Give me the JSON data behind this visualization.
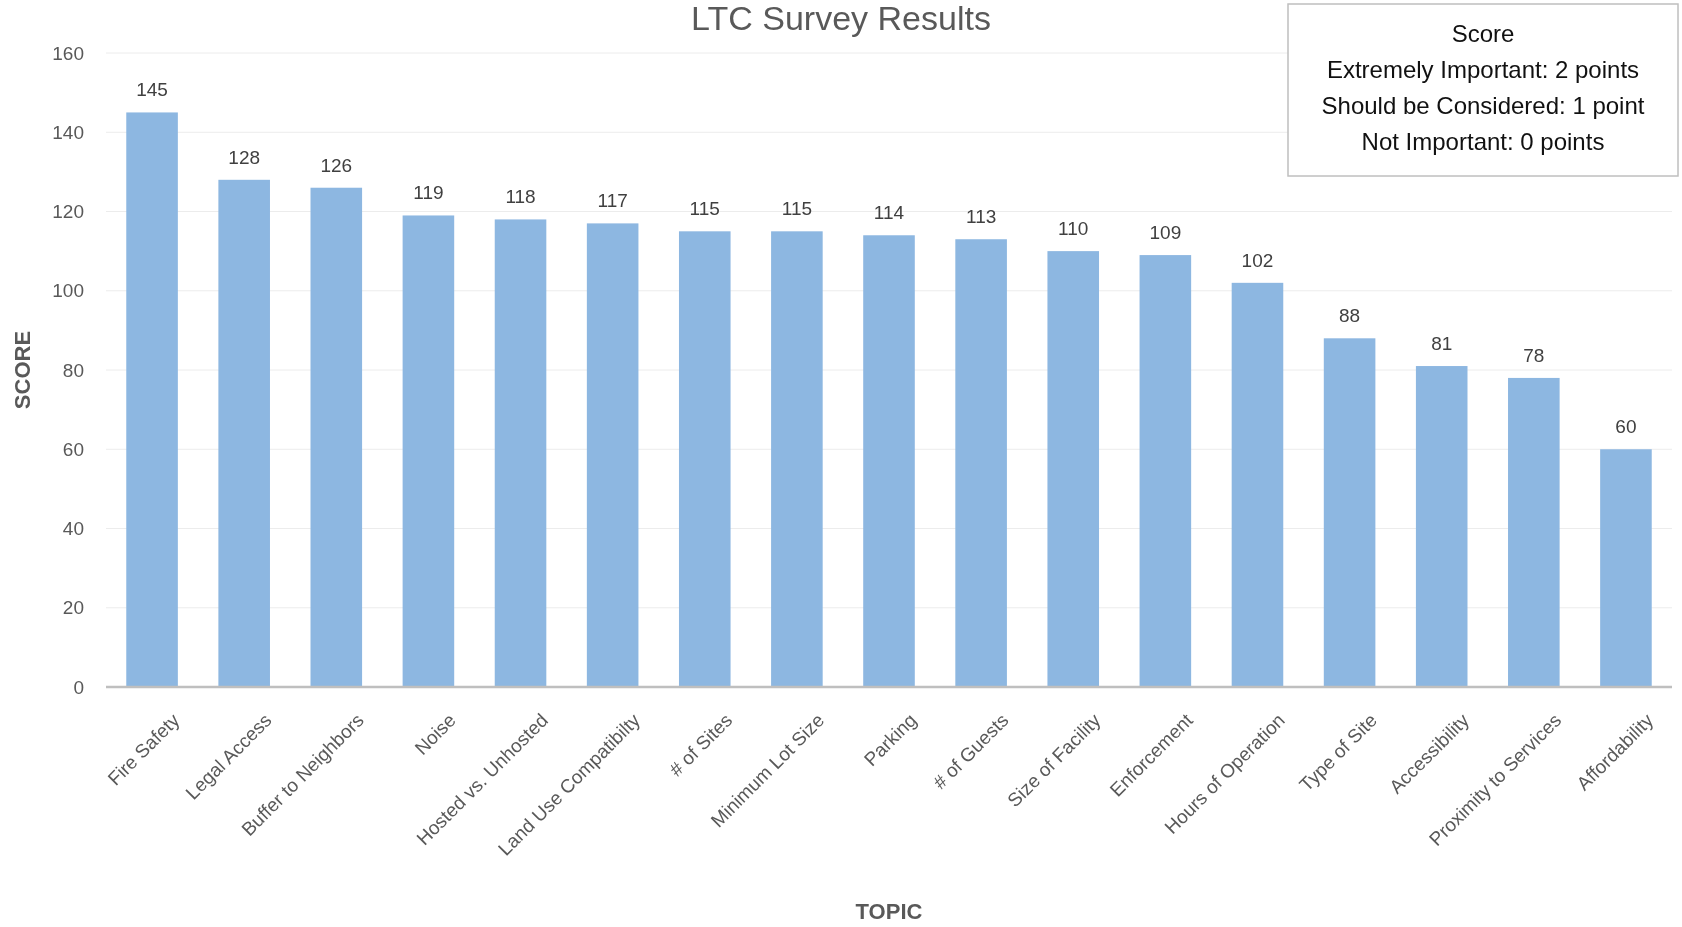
{
  "chart_data": {
    "type": "bar",
    "title": "LTC Survey Results",
    "xlabel": "TOPIC",
    "ylabel": "SCORE",
    "categories": [
      "Fire Safety",
      "Legal Access",
      "Buffer to Neighbors",
      "Noise",
      "Hosted vs. Unhosted",
      "Land Use Compatibilty",
      "# of Sites",
      "Minimum Lot Size",
      "Parking",
      "# of Guests",
      "Size of Facility",
      "Enforcement",
      "Hours of Operation",
      "Type of Site",
      "Accessibility",
      "Proximity to Services",
      "Affordability"
    ],
    "values": [
      145,
      128,
      126,
      119,
      118,
      117,
      115,
      115,
      114,
      113,
      110,
      109,
      102,
      88,
      81,
      78,
      60
    ],
    "color": "#8db7e1",
    "ylim": [
      0,
      160
    ],
    "yticks": [
      0,
      20,
      40,
      60,
      80,
      100,
      120,
      140,
      160
    ],
    "grid": "y",
    "data_labels": true,
    "annotations": [
      "Score",
      "Extremely Important: 2 points",
      "Should be Considered: 1 point",
      "Not Important: 0 points"
    ]
  }
}
